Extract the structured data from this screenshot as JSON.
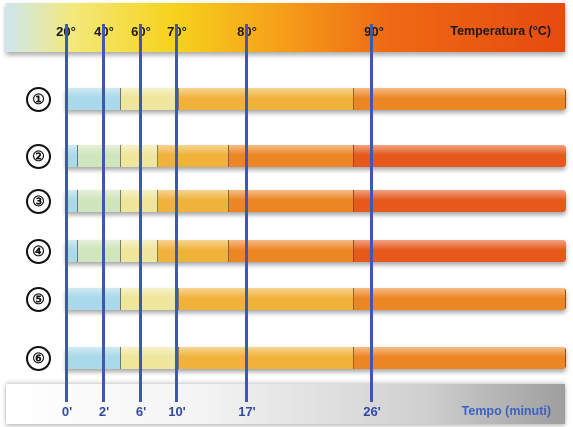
{
  "temperature_axis": {
    "title": "Temperatura (°C)",
    "ticks": [
      "20°",
      "40°",
      "60°",
      "70°",
      "80°",
      "90°"
    ]
  },
  "time_axis": {
    "title": "Tempo (minuti)",
    "ticks": [
      "0'",
      "2'",
      "6'",
      "10'",
      "17'",
      "26'"
    ]
  },
  "colors": {
    "pale_blue": "#a9d9ea",
    "pale_green": "#cfe5bd",
    "pale_yellow": "#eee69a",
    "light_orange": "#f0b23a",
    "orange": "#ec8624",
    "red_orange": "#e6581c",
    "guide_line": "#3f57b0"
  },
  "rows": [
    {
      "label": "①",
      "segments": [
        "pale_blue",
        "pale_yellow",
        "light_orange",
        "orange",
        "red_orange"
      ]
    },
    {
      "label": "②",
      "segments": [
        "pale_blue",
        "pale_green",
        "pale_yellow",
        "light_orange",
        "orange",
        "red_orange"
      ]
    },
    {
      "label": "③",
      "segments": [
        "pale_blue",
        "pale_green",
        "pale_yellow",
        "light_orange",
        "orange",
        "red_orange"
      ]
    },
    {
      "label": "④",
      "segments": [
        "pale_blue",
        "pale_green",
        "pale_yellow",
        "light_orange",
        "orange",
        "red_orange"
      ]
    },
    {
      "label": "⑤",
      "segments": [
        "pale_blue",
        "pale_yellow",
        "light_orange",
        "orange",
        "red_orange"
      ]
    },
    {
      "label": "⑥",
      "segments": [
        "pale_blue",
        "pale_yellow",
        "light_orange",
        "orange",
        "red_orange"
      ]
    }
  ]
}
